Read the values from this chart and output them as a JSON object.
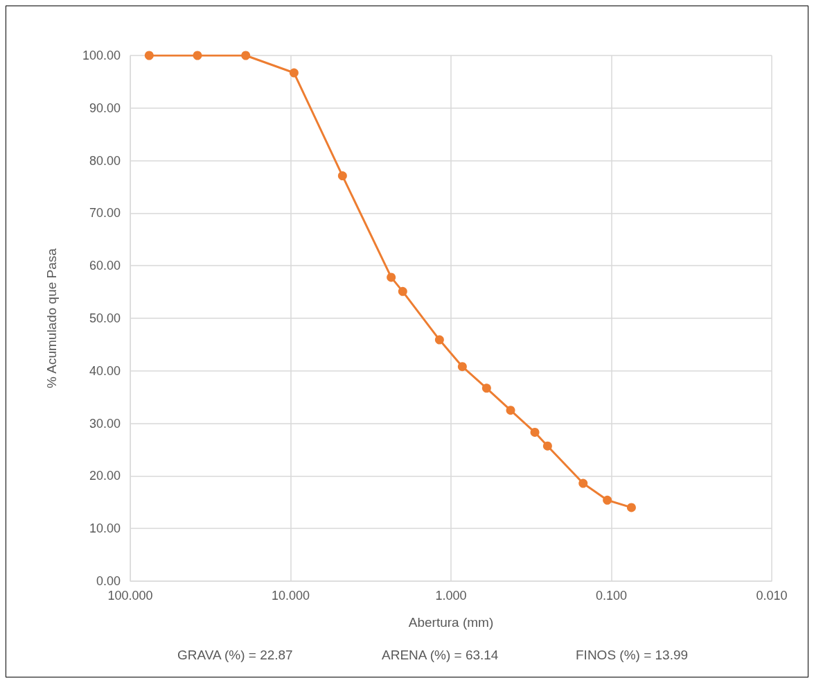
{
  "chart_data": {
    "type": "line",
    "xlabel": "Abertura (mm)",
    "ylabel": "% Acumulado que Pasa",
    "annotations": [
      "GRAVA (%) = 22.87",
      "ARENA (%) = 63.14",
      "FINOS (%) = 13.99"
    ],
    "log": "x",
    "xlim": [
      100,
      0.01
    ],
    "xticks": [
      {
        "value": 100,
        "label": "100.000"
      },
      {
        "value": 10,
        "label": "10.000"
      },
      {
        "value": 1,
        "label": "1.000"
      },
      {
        "value": 0.1,
        "label": "0.100"
      },
      {
        "value": 0.01,
        "label": "0.010"
      }
    ],
    "ylim": [
      0,
      100
    ],
    "yticks": [
      {
        "value": 0,
        "label": "0.00"
      },
      {
        "value": 10,
        "label": "10.00"
      },
      {
        "value": 20,
        "label": "20.00"
      },
      {
        "value": 30,
        "label": "30.00"
      },
      {
        "value": 40,
        "label": "40.00"
      },
      {
        "value": 50,
        "label": "50.00"
      },
      {
        "value": 60,
        "label": "60.00"
      },
      {
        "value": 70,
        "label": "70.00"
      },
      {
        "value": 80,
        "label": "80.00"
      },
      {
        "value": 90,
        "label": "90.00"
      },
      {
        "value": 100,
        "label": "100.00"
      }
    ],
    "grid": true,
    "marker": "circle",
    "x": [
      76.2,
      38.1,
      19.05,
      9.525,
      4.75,
      2.36,
      2.0,
      1.18,
      0.85,
      0.6,
      0.425,
      0.3,
      0.25,
      0.15,
      0.106,
      0.075
    ],
    "series": [
      {
        "color": "#ed7d31",
        "values": [
          100,
          100,
          100,
          96.7,
          77.1,
          57.8,
          55.1,
          45.9,
          40.8,
          36.7,
          32.5,
          28.3,
          25.7,
          18.6,
          15.4,
          14.0
        ]
      }
    ]
  }
}
